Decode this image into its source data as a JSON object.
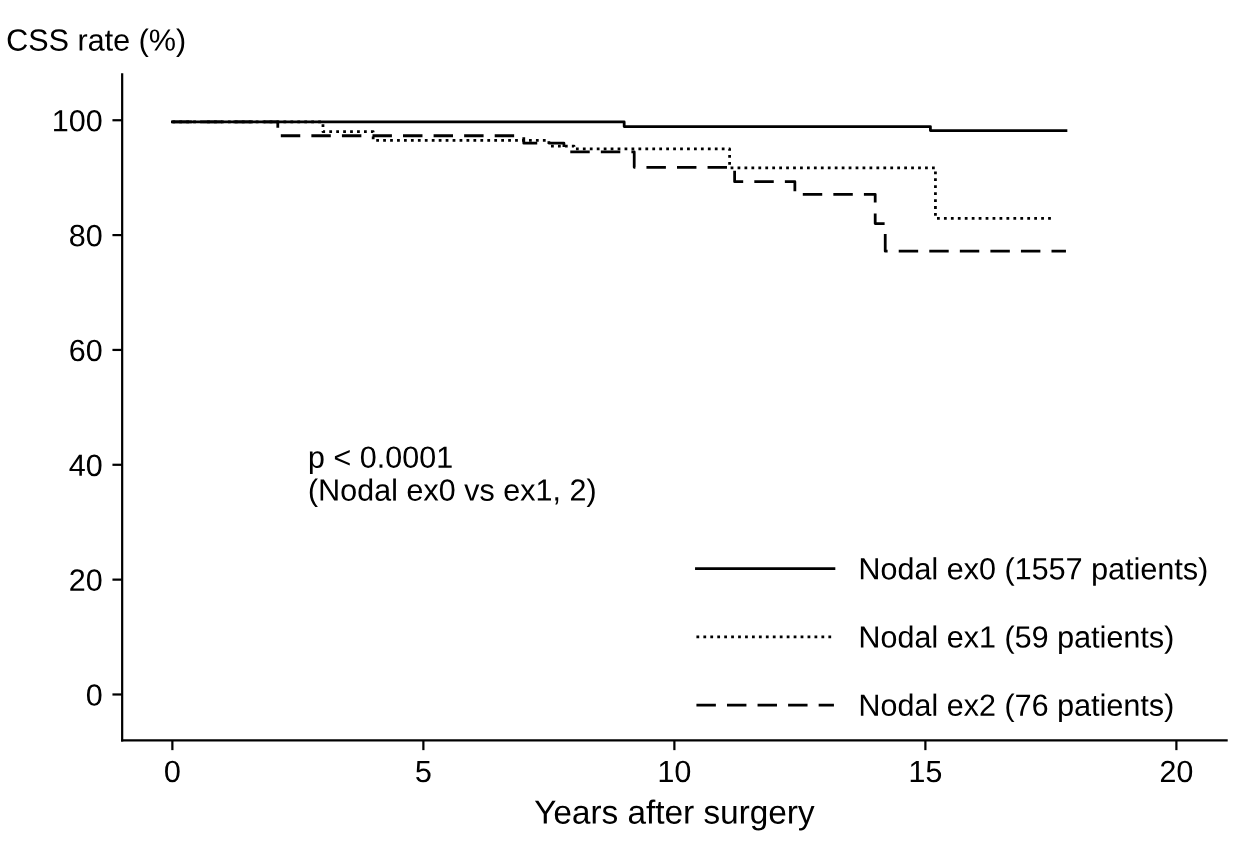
{
  "chart_data": {
    "type": "step",
    "ylabel": "CSS rate (%)",
    "xlabel": "Years after surgery",
    "xlim": [
      -1,
      21
    ],
    "xticks": [
      0,
      5,
      10,
      15,
      20
    ],
    "ylim": [
      -8,
      108
    ],
    "yticks": [
      0,
      20,
      40,
      60,
      80,
      100
    ],
    "annotations": [
      "p < 0.0001\n(Nodal ex0 vs ex1, 2)"
    ],
    "legend": "bottom right",
    "grid": false,
    "series": [
      {
        "name": "Nodal ex0 (1557 patients)",
        "color": "#000000",
        "line_style": "solid",
        "x": [
          0,
          9,
          15.1,
          17.8
        ],
        "values": [
          99.7,
          98.9,
          98.2,
          98.2
        ]
      },
      {
        "name": "Nodal ex1 (59 patients)",
        "color": "#000000",
        "line_style": "dotted",
        "x": [
          0,
          3,
          4,
          7.5,
          8,
          11.1,
          15.2,
          17.5
        ],
        "values": [
          99.7,
          98,
          96.5,
          95.5,
          95,
          91.7,
          82.9,
          82.9
        ]
      },
      {
        "name": "Nodal ex2 (76 patients)",
        "color": "#000000",
        "line_style": "dashed",
        "x": [
          0,
          2.1,
          7,
          7.8,
          9.2,
          11.2,
          12.4,
          14,
          14.2,
          17.8
        ],
        "values": [
          99.7,
          97.3,
          96,
          94.5,
          91.8,
          89.3,
          87.1,
          82,
          77.2,
          77.2
        ]
      }
    ]
  }
}
